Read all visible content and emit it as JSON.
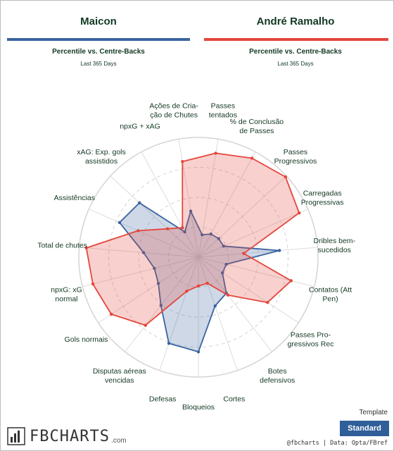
{
  "header": {
    "left": {
      "name": "Maicon",
      "subtitle": "Percentile vs. Centre-Backs",
      "period": "Last 365 Days"
    },
    "right": {
      "name": "André Ramalho",
      "subtitle": "Percentile vs. Centre-Backs",
      "period": "Last 365 Days"
    }
  },
  "colors": {
    "left": "#3a64a0",
    "right": "#e4463c"
  },
  "chart_data": {
    "type": "radar",
    "range": [
      0,
      100
    ],
    "grid": true,
    "metrics": [
      [
        "npxG + xAG"
      ],
      [
        "Ações de Cria-",
        "ção de Chutes"
      ],
      [
        "Passes",
        "tentados"
      ],
      [
        "% de Conclusão",
        "de Passes"
      ],
      [
        "Passes",
        "Progressivos"
      ],
      [
        "Carregadas",
        "Progressivas"
      ],
      [
        "Dribles bem-",
        "sucedidos"
      ],
      [
        "Contatos (Att",
        "Pen)"
      ],
      [
        "Passes Pro-",
        "gressivos Rec"
      ],
      [
        "Botes",
        "defensivos"
      ],
      [
        "Cortes"
      ],
      [
        "Bloqueios"
      ],
      [
        "Defesas"
      ],
      [
        "Disputas aéreas",
        "vencidas"
      ],
      [
        "Gols normais"
      ],
      [
        "npxG: xG",
        "normal"
      ],
      [
        "Total de chutes"
      ],
      [
        "Assistências"
      ],
      [
        "xAG: Exp. gols",
        "assistidos"
      ]
    ],
    "series": [
      {
        "name": "Maicon",
        "values": [
          24,
          39,
          19,
          22,
          23,
          23,
          68,
          24,
          24,
          38,
          43,
          79,
          76,
          51,
          40,
          38,
          46,
          72,
          67
        ]
      },
      {
        "name": "André Ramalho",
        "values": [
          28,
          81,
          88,
          94,
          99,
          92,
          38,
          80,
          69,
          40,
          23,
          24,
          30,
          72,
          87,
          91,
          94,
          55,
          35
        ]
      }
    ]
  },
  "footer": {
    "logo": "FBCHARTS",
    "logo_suffix": ".com",
    "template_label": "Template",
    "template_button": "Standard",
    "credit": "@fbcharts | Data: Opta/FBref"
  }
}
